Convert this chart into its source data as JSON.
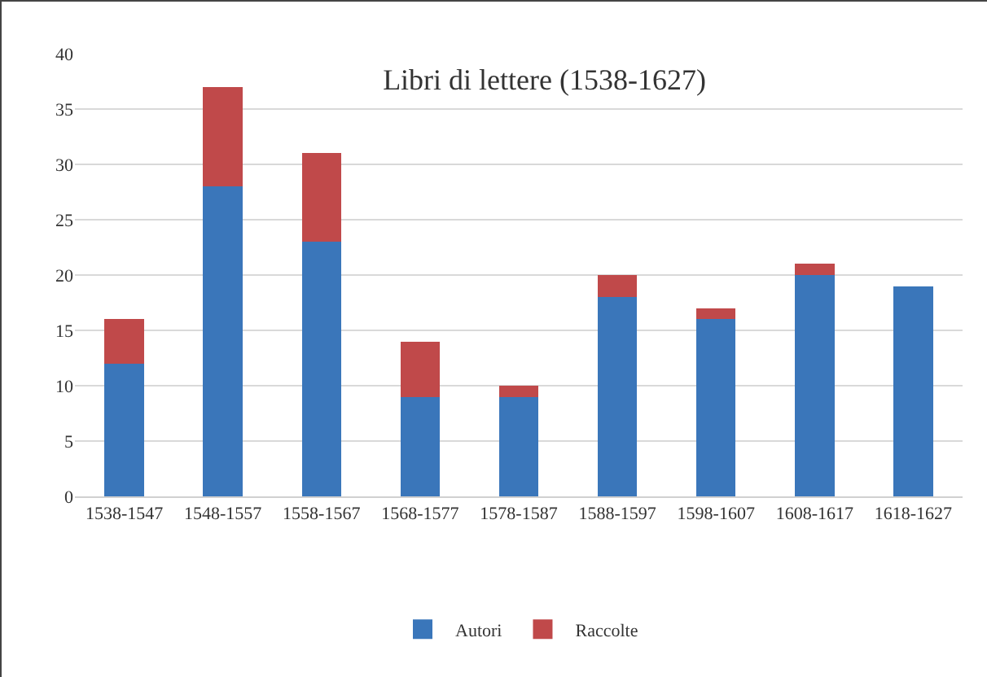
{
  "chart_data": {
    "type": "bar",
    "title": "Libri di lettere (1538-1627)",
    "stacked": true,
    "categories": [
      "1538-1547",
      "1548-1557",
      "1558-1567",
      "1568-1577",
      "1578-1587",
      "1588-1597",
      "1598-1607",
      "1608-1617",
      "1618-1627"
    ],
    "series": [
      {
        "name": "Autori",
        "color": "#3a76ba",
        "values": [
          12,
          28,
          23,
          9,
          9,
          18,
          16,
          20,
          19
        ]
      },
      {
        "name": "Raccolte",
        "color": "#c0494a",
        "values": [
          4,
          9,
          8,
          5,
          1,
          2,
          1,
          1,
          0
        ]
      }
    ],
    "ylim": [
      0,
      40
    ],
    "yticks": [
      0,
      5,
      10,
      15,
      20,
      25,
      30,
      35,
      40
    ],
    "grid": "y",
    "legend": "bottom"
  }
}
